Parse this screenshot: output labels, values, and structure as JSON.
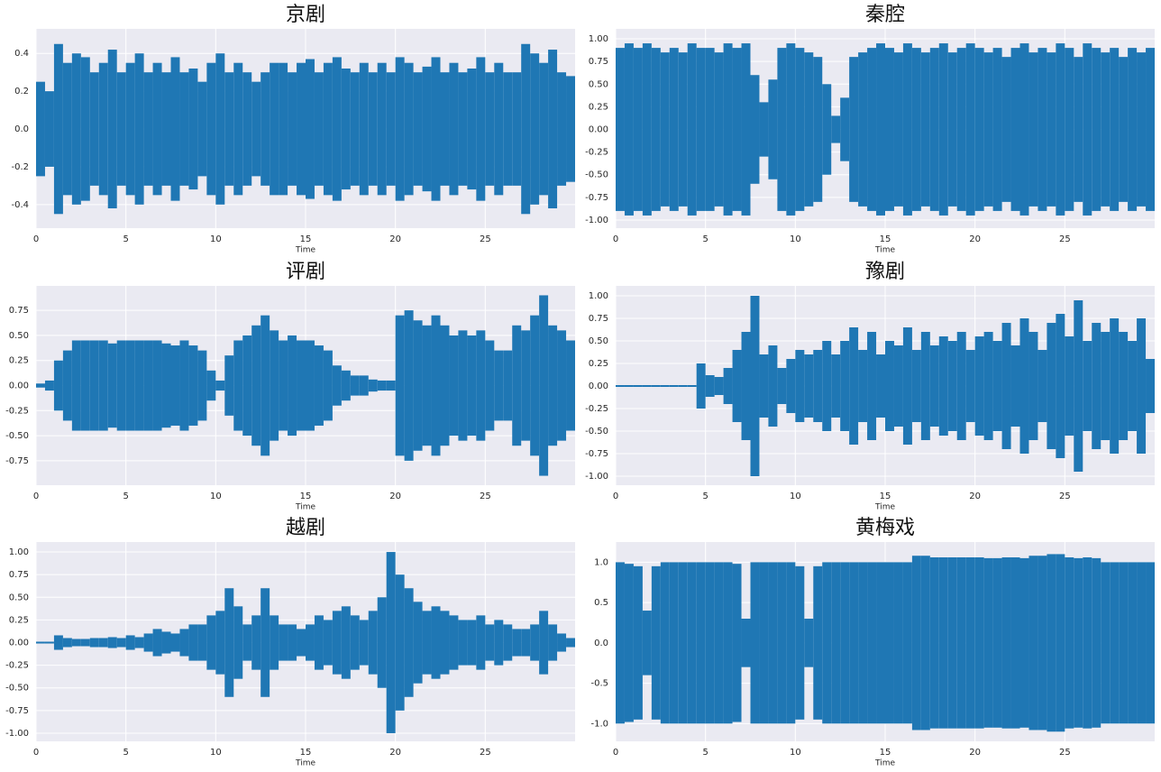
{
  "chart_data": [
    {
      "type": "waveform",
      "title": "京剧",
      "xlabel": "Time",
      "color": "#1f77b4",
      "grid": true,
      "x": [
        0,
        0.5,
        1,
        1.5,
        2,
        2.5,
        3,
        3.5,
        4,
        4.5,
        5,
        5.5,
        6,
        6.5,
        7,
        7.5,
        8,
        8.5,
        9,
        9.5,
        10,
        10.5,
        11,
        11.5,
        12,
        12.5,
        13,
        13.5,
        14,
        14.5,
        15,
        15.5,
        16,
        16.5,
        17,
        17.5,
        18,
        18.5,
        19,
        19.5,
        20,
        20.5,
        21,
        21.5,
        22,
        22.5,
        23,
        23.5,
        24,
        24.5,
        25,
        25.5,
        26,
        26.5,
        27,
        27.5,
        28,
        28.5,
        29,
        29.5
      ],
      "values": [
        0.25,
        0.2,
        0.45,
        0.35,
        0.4,
        0.38,
        0.3,
        0.35,
        0.42,
        0.3,
        0.35,
        0.4,
        0.3,
        0.35,
        0.3,
        0.38,
        0.3,
        0.32,
        0.25,
        0.35,
        0.4,
        0.3,
        0.35,
        0.3,
        0.25,
        0.3,
        0.35,
        0.35,
        0.3,
        0.35,
        0.37,
        0.3,
        0.35,
        0.38,
        0.32,
        0.3,
        0.35,
        0.3,
        0.35,
        0.3,
        0.38,
        0.35,
        0.3,
        0.33,
        0.38,
        0.3,
        0.35,
        0.3,
        0.32,
        0.38,
        0.3,
        0.35,
        0.3,
        0.3,
        0.45,
        0.4,
        0.35,
        0.42,
        0.3,
        0.28
      ],
      "xlim": [
        0,
        30
      ],
      "xticks": [
        0,
        5,
        10,
        15,
        20,
        25
      ],
      "ylim": [
        -0.525,
        0.53
      ],
      "yticks": [
        -0.4,
        -0.2,
        {
          "value": 0,
          "label": "0.0"
        },
        0.2,
        0.4
      ]
    },
    {
      "type": "waveform",
      "title": "秦腔",
      "xlabel": "Time",
      "color": "#1f77b4",
      "grid": true,
      "x": [
        0,
        0.5,
        1,
        1.5,
        2,
        2.5,
        3,
        3.5,
        4,
        4.5,
        5,
        5.5,
        6,
        6.5,
        7,
        7.5,
        8,
        8.5,
        9,
        9.5,
        10,
        10.5,
        11,
        11.5,
        12,
        12.5,
        13,
        13.5,
        14,
        14.5,
        15,
        15.5,
        16,
        16.5,
        17,
        17.5,
        18,
        18.5,
        19,
        19.5,
        20,
        20.5,
        21,
        21.5,
        22,
        22.5,
        23,
        23.5,
        24,
        24.5,
        25,
        25.5,
        26,
        26.5,
        27,
        27.5,
        28,
        28.5,
        29,
        29.5
      ],
      "values": [
        0.9,
        0.95,
        0.9,
        0.95,
        0.9,
        0.85,
        0.9,
        0.85,
        0.95,
        0.9,
        0.9,
        0.85,
        0.95,
        0.9,
        0.95,
        0.6,
        0.3,
        0.55,
        0.9,
        0.95,
        0.9,
        0.85,
        0.8,
        0.5,
        0.15,
        0.35,
        0.8,
        0.85,
        0.9,
        0.95,
        0.9,
        0.85,
        0.95,
        0.9,
        0.85,
        0.9,
        0.95,
        0.85,
        0.9,
        0.95,
        0.9,
        0.85,
        0.9,
        0.8,
        0.9,
        0.95,
        0.85,
        0.9,
        0.85,
        0.95,
        0.9,
        0.8,
        0.95,
        0.9,
        0.85,
        0.9,
        0.8,
        0.9,
        0.85,
        0.9
      ],
      "xlim": [
        0,
        30
      ],
      "xticks": [
        0,
        5,
        10,
        15,
        20,
        25
      ],
      "ylim": [
        -1.09,
        1.11
      ],
      "yticks": [
        {
          "value": -1,
          "label": "-1.00"
        },
        -0.75,
        {
          "value": -0.5,
          "label": "-0.50"
        },
        -0.25,
        {
          "value": 0,
          "label": "0.00"
        },
        0.25,
        {
          "value": 0.5,
          "label": "0.50"
        },
        0.75,
        {
          "value": 1,
          "label": "1.00"
        }
      ]
    },
    {
      "type": "waveform",
      "title": "评剧",
      "xlabel": "Time",
      "color": "#1f77b4",
      "grid": true,
      "x": [
        0,
        0.5,
        1,
        1.5,
        2,
        2.5,
        3,
        3.5,
        4,
        4.5,
        5,
        5.5,
        6,
        6.5,
        7,
        7.5,
        8,
        8.5,
        9,
        9.5,
        10,
        10.5,
        11,
        11.5,
        12,
        12.5,
        13,
        13.5,
        14,
        14.5,
        15,
        15.5,
        16,
        16.5,
        17,
        17.5,
        18,
        18.5,
        19,
        19.5,
        20,
        20.5,
        21,
        21.5,
        22,
        22.5,
        23,
        23.5,
        24,
        24.5,
        25,
        25.5,
        26,
        26.5,
        27,
        27.5,
        28,
        28.5,
        29,
        29.5
      ],
      "values": [
        0.02,
        0.05,
        0.25,
        0.35,
        0.45,
        0.45,
        0.45,
        0.45,
        0.42,
        0.45,
        0.45,
        0.45,
        0.45,
        0.45,
        0.42,
        0.4,
        0.45,
        0.4,
        0.35,
        0.15,
        0.05,
        0.3,
        0.45,
        0.5,
        0.6,
        0.7,
        0.55,
        0.45,
        0.5,
        0.45,
        0.45,
        0.4,
        0.35,
        0.2,
        0.15,
        0.1,
        0.1,
        0.06,
        0.05,
        0.05,
        0.7,
        0.75,
        0.65,
        0.6,
        0.7,
        0.6,
        0.5,
        0.55,
        0.5,
        0.55,
        0.45,
        0.35,
        0.35,
        0.6,
        0.55,
        0.7,
        0.9,
        0.6,
        0.55,
        0.45
      ],
      "xlim": [
        0,
        30
      ],
      "xticks": [
        0,
        5,
        10,
        15,
        20,
        25
      ],
      "ylim": [
        -0.994,
        0.994
      ],
      "yticks": [
        -0.75,
        {
          "value": -0.5,
          "label": "-0.50"
        },
        -0.25,
        {
          "value": 0,
          "label": "0.00"
        },
        0.25,
        {
          "value": 0.5,
          "label": "0.50"
        },
        0.75
      ]
    },
    {
      "type": "waveform",
      "title": "豫剧",
      "xlabel": "Time",
      "color": "#1f77b4",
      "grid": true,
      "x": [
        0,
        0.5,
        1,
        1.5,
        2,
        2.5,
        3,
        3.5,
        4,
        4.5,
        5,
        5.5,
        6,
        6.5,
        7,
        7.5,
        8,
        8.5,
        9,
        9.5,
        10,
        10.5,
        11,
        11.5,
        12,
        12.5,
        13,
        13.5,
        14,
        14.5,
        15,
        15.5,
        16,
        16.5,
        17,
        17.5,
        18,
        18.5,
        19,
        19.5,
        20,
        20.5,
        21,
        21.5,
        22,
        22.5,
        23,
        23.5,
        24,
        24.5,
        25,
        25.5,
        26,
        26.5,
        27,
        27.5,
        28,
        28.5,
        29,
        29.5
      ],
      "values": [
        0.01,
        0.01,
        0.01,
        0.01,
        0.01,
        0.01,
        0.01,
        0.01,
        0.01,
        0.25,
        0.12,
        0.1,
        0.2,
        0.4,
        0.6,
        1.0,
        0.35,
        0.45,
        0.2,
        0.3,
        0.4,
        0.35,
        0.4,
        0.5,
        0.35,
        0.5,
        0.65,
        0.4,
        0.6,
        0.35,
        0.5,
        0.45,
        0.65,
        0.4,
        0.6,
        0.45,
        0.55,
        0.5,
        0.6,
        0.4,
        0.55,
        0.6,
        0.5,
        0.7,
        0.45,
        0.75,
        0.6,
        0.4,
        0.7,
        0.8,
        0.55,
        0.95,
        0.5,
        0.7,
        0.6,
        0.75,
        0.6,
        0.5,
        0.75,
        0.3
      ],
      "xlim": [
        0,
        30
      ],
      "xticks": [
        0,
        5,
        10,
        15,
        20,
        25
      ],
      "ylim": [
        -1.1,
        1.11
      ],
      "yticks": [
        {
          "value": -1,
          "label": "-1.00"
        },
        -0.75,
        {
          "value": -0.5,
          "label": "-0.50"
        },
        -0.25,
        {
          "value": 0,
          "label": "0.00"
        },
        0.25,
        {
          "value": 0.5,
          "label": "0.50"
        },
        0.75,
        {
          "value": 1,
          "label": "1.00"
        }
      ]
    },
    {
      "type": "waveform",
      "title": "越剧",
      "xlabel": "Time",
      "color": "#1f77b4",
      "grid": true,
      "x": [
        0,
        0.5,
        1,
        1.5,
        2,
        2.5,
        3,
        3.5,
        4,
        4.5,
        5,
        5.5,
        6,
        6.5,
        7,
        7.5,
        8,
        8.5,
        9,
        9.5,
        10,
        10.5,
        11,
        11.5,
        12,
        12.5,
        13,
        13.5,
        14,
        14.5,
        15,
        15.5,
        16,
        16.5,
        17,
        17.5,
        18,
        18.5,
        19,
        19.5,
        20,
        20.5,
        21,
        21.5,
        22,
        22.5,
        23,
        23.5,
        24,
        24.5,
        25,
        25.5,
        26,
        26.5,
        27,
        27.5,
        28,
        28.5,
        29,
        29.5
      ],
      "values": [
        0.01,
        0.01,
        0.08,
        0.05,
        0.04,
        0.04,
        0.05,
        0.05,
        0.06,
        0.05,
        0.08,
        0.06,
        0.1,
        0.15,
        0.12,
        0.1,
        0.15,
        0.2,
        0.2,
        0.3,
        0.35,
        0.6,
        0.4,
        0.2,
        0.3,
        0.6,
        0.3,
        0.2,
        0.2,
        0.15,
        0.2,
        0.3,
        0.25,
        0.35,
        0.4,
        0.3,
        0.25,
        0.35,
        0.5,
        1.0,
        0.75,
        0.6,
        0.45,
        0.35,
        0.4,
        0.35,
        0.3,
        0.25,
        0.25,
        0.3,
        0.2,
        0.25,
        0.2,
        0.15,
        0.15,
        0.2,
        0.35,
        0.2,
        0.1,
        0.05
      ],
      "xlim": [
        0,
        30
      ],
      "xticks": [
        0,
        5,
        10,
        15,
        20,
        25
      ],
      "ylim": [
        -1.09,
        1.11
      ],
      "yticks": [
        {
          "value": -1,
          "label": "-1.00"
        },
        -0.75,
        {
          "value": -0.5,
          "label": "-0.50"
        },
        -0.25,
        {
          "value": 0,
          "label": "0.00"
        },
        0.25,
        {
          "value": 0.5,
          "label": "0.50"
        },
        0.75,
        {
          "value": 1,
          "label": "1.00"
        }
      ]
    },
    {
      "type": "waveform",
      "title": "黄梅戏",
      "xlabel": "Time",
      "color": "#1f77b4",
      "grid": true,
      "x": [
        0,
        0.5,
        1,
        1.5,
        2,
        2.5,
        3,
        3.5,
        4,
        4.5,
        5,
        5.5,
        6,
        6.5,
        7,
        7.5,
        8,
        8.5,
        9,
        9.5,
        10,
        10.5,
        11,
        11.5,
        12,
        12.5,
        13,
        13.5,
        14,
        14.5,
        15,
        15.5,
        16,
        16.5,
        17,
        17.5,
        18,
        18.5,
        19,
        19.5,
        20,
        20.5,
        21,
        21.5,
        22,
        22.5,
        23,
        23.5,
        24,
        24.5,
        25,
        25.5,
        26,
        26.5,
        27,
        27.5,
        28,
        28.5,
        29,
        29.5
      ],
      "values": [
        1.0,
        0.98,
        0.95,
        0.4,
        0.95,
        1.0,
        1.0,
        1.0,
        1.0,
        1.0,
        1.0,
        1.0,
        1.0,
        0.98,
        0.3,
        1.0,
        1.0,
        1.0,
        1.0,
        1.0,
        0.95,
        0.3,
        0.95,
        1.0,
        1.0,
        1.0,
        1.0,
        1.0,
        1.0,
        1.0,
        1.0,
        1.0,
        1.0,
        1.08,
        1.08,
        1.06,
        1.06,
        1.06,
        1.06,
        1.06,
        1.06,
        1.05,
        1.05,
        1.06,
        1.06,
        1.05,
        1.08,
        1.08,
        1.1,
        1.1,
        1.06,
        1.05,
        1.06,
        1.05,
        1.0,
        1.0,
        1.0,
        1.0,
        1.0,
        1.0
      ],
      "xlim": [
        0,
        30
      ],
      "xticks": [
        0,
        5,
        10,
        15,
        20,
        25
      ],
      "ylim": [
        -1.22,
        1.25
      ],
      "yticks": [
        {
          "value": -1,
          "label": "-1.0"
        },
        -0.5,
        {
          "value": 0,
          "label": "0.0"
        },
        0.5,
        {
          "value": 1,
          "label": "1.0"
        }
      ]
    }
  ]
}
